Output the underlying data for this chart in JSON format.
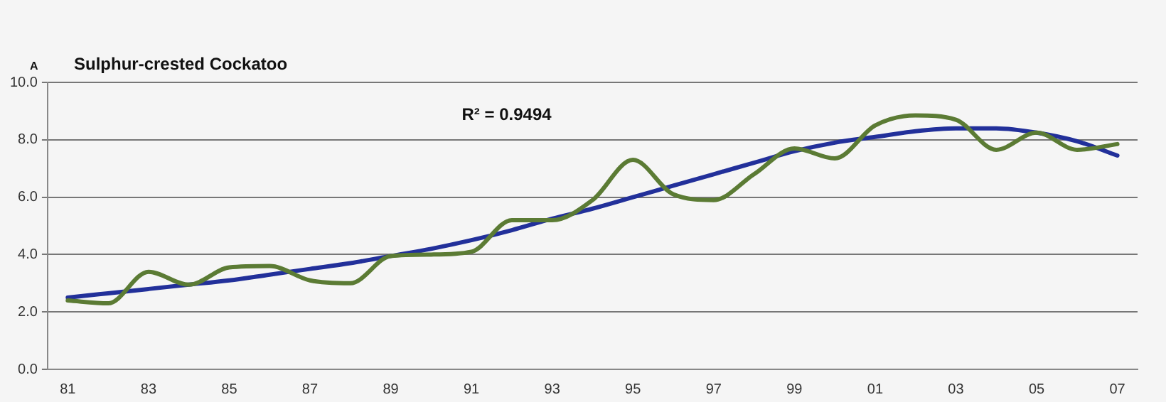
{
  "chart_data": {
    "type": "line",
    "title": "Sulphur-crested Cockatoo",
    "annotations": [
      "A",
      "R² = 0.9494"
    ],
    "categories": [
      "81",
      null,
      "83",
      null,
      "85",
      null,
      "87",
      null,
      "89",
      null,
      "91",
      null,
      "93",
      null,
      "95",
      null,
      "97",
      null,
      "99",
      null,
      "01",
      null,
      "03",
      null,
      "05",
      null,
      "07"
    ],
    "series": [
      {
        "color": "#5b7b34",
        "values": [
          2.4,
          2.3,
          3.4,
          2.95,
          3.55,
          3.6,
          3.1,
          3.0,
          3.95,
          4.0,
          4.1,
          5.2,
          5.2,
          5.9,
          7.3,
          6.1,
          5.9,
          6.8,
          7.7,
          7.35,
          8.5,
          8.85,
          8.7,
          7.65,
          8.25,
          7.65,
          7.85
        ]
      },
      {
        "color": "#22309a",
        "values": [
          2.5,
          2.65,
          2.8,
          2.95,
          3.1,
          3.3,
          3.5,
          3.7,
          3.95,
          4.2,
          4.5,
          4.85,
          5.25,
          5.6,
          6.0,
          6.4,
          6.8,
          7.2,
          7.6,
          7.9,
          8.1,
          8.3,
          8.4,
          8.4,
          8.25,
          7.95,
          7.45
        ]
      }
    ],
    "ylim": [
      0,
      10
    ],
    "yticks": [
      {
        "value": 0,
        "label": "0.0"
      },
      {
        "value": 2,
        "label": "2.0"
      },
      {
        "value": 4,
        "label": "4.0"
      },
      {
        "value": 6,
        "label": "6.0"
      },
      {
        "value": 8,
        "label": "8.0"
      },
      {
        "value": 10,
        "label": "10.0"
      }
    ],
    "grid": "y",
    "legend": false,
    "marker": "none",
    "line_style": "solid"
  }
}
